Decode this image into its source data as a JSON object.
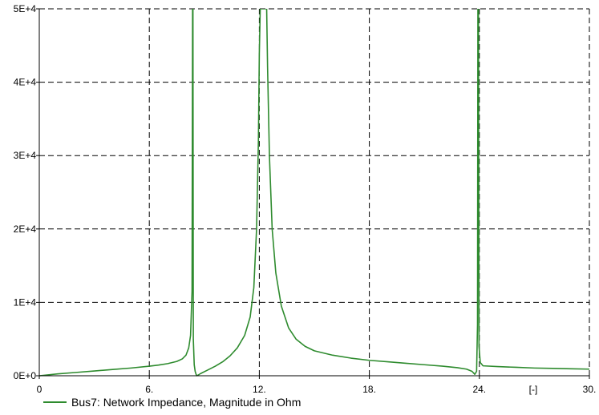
{
  "chart_data": {
    "type": "line",
    "title": "",
    "xlabel": "",
    "ylabel": "",
    "x_unit_label": "[-]",
    "xlim": [
      0,
      30
    ],
    "ylim": [
      0,
      50000
    ],
    "x_ticks": [
      0,
      6,
      12,
      18,
      24,
      30
    ],
    "x_tick_labels": [
      "0",
      "6.",
      "12.",
      "18.",
      "24.",
      "30."
    ],
    "y_ticks": [
      0,
      10000,
      20000,
      30000,
      40000,
      50000
    ],
    "y_tick_labels": [
      "0E+0",
      "1E+4",
      "2E+4",
      "3E+4",
      "4E+4",
      "5E+4"
    ],
    "grid": true,
    "legend_position": "bottom-left",
    "series": [
      {
        "name": "Bus7: Network Impedance, Magnitude in Ohm",
        "color": "#2e8b2e",
        "points": [
          [
            0,
            0
          ],
          [
            1,
            250
          ],
          [
            2,
            450
          ],
          [
            3,
            650
          ],
          [
            4,
            850
          ],
          [
            5,
            1050
          ],
          [
            6,
            1300
          ],
          [
            6.5,
            1450
          ],
          [
            7,
            1650
          ],
          [
            7.5,
            1950
          ],
          [
            7.8,
            2300
          ],
          [
            8.0,
            2800
          ],
          [
            8.15,
            3800
          ],
          [
            8.25,
            5500
          ],
          [
            8.33,
            11500
          ],
          [
            8.36,
            50000
          ],
          [
            8.38,
            50000
          ],
          [
            8.4,
            5000
          ],
          [
            8.45,
            1500
          ],
          [
            8.5,
            600
          ],
          [
            8.55,
            200
          ],
          [
            8.6,
            0
          ],
          [
            8.8,
            300
          ],
          [
            9.2,
            800
          ],
          [
            9.6,
            1300
          ],
          [
            10.0,
            1900
          ],
          [
            10.4,
            2700
          ],
          [
            10.8,
            3800
          ],
          [
            11.2,
            5500
          ],
          [
            11.5,
            8000
          ],
          [
            11.7,
            12000
          ],
          [
            11.85,
            20000
          ],
          [
            11.95,
            32000
          ],
          [
            12.0,
            44000
          ],
          [
            12.05,
            50000
          ],
          [
            12.1,
            50000
          ],
          [
            12.35,
            50000
          ],
          [
            12.4,
            50000
          ],
          [
            12.45,
            42000
          ],
          [
            12.55,
            30000
          ],
          [
            12.7,
            20000
          ],
          [
            12.9,
            14000
          ],
          [
            13.2,
            9500
          ],
          [
            13.6,
            6500
          ],
          [
            14.0,
            5000
          ],
          [
            14.5,
            4000
          ],
          [
            15.0,
            3400
          ],
          [
            16.0,
            2800
          ],
          [
            17.0,
            2400
          ],
          [
            18.0,
            2100
          ],
          [
            19.0,
            1900
          ],
          [
            20.0,
            1700
          ],
          [
            21.0,
            1500
          ],
          [
            22.0,
            1300
          ],
          [
            22.8,
            1100
          ],
          [
            23.3,
            900
          ],
          [
            23.6,
            600
          ],
          [
            23.75,
            200
          ],
          [
            23.85,
            600
          ],
          [
            23.9,
            7000
          ],
          [
            23.92,
            50000
          ],
          [
            23.95,
            50000
          ],
          [
            23.98,
            4000
          ],
          [
            24.05,
            1800
          ],
          [
            24.2,
            1350
          ],
          [
            25.0,
            1250
          ],
          [
            26.0,
            1150
          ],
          [
            27.0,
            1050
          ],
          [
            28.0,
            1000
          ],
          [
            29.0,
            950
          ],
          [
            30.0,
            900
          ]
        ]
      }
    ]
  }
}
